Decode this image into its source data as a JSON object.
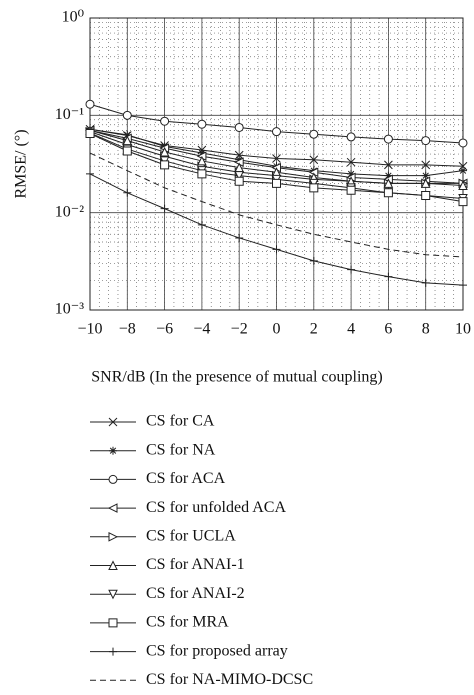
{
  "chart_data": {
    "type": "line",
    "x_label": "SNR/dB (In the presence of mutual coupling)",
    "y_label": "RMSE/ (°)",
    "log_y": true,
    "grid": true,
    "x": [
      -10,
      -8,
      -6,
      -4,
      -2,
      0,
      2,
      4,
      6,
      8,
      10
    ],
    "xlim": [
      -10,
      10
    ],
    "xticks": [
      {
        "value": -10,
        "label": "−10"
      },
      {
        "value": -8,
        "label": "−8"
      },
      {
        "value": -6,
        "label": "−6"
      },
      {
        "value": -4,
        "label": "−4"
      },
      {
        "value": -2,
        "label": "−2"
      },
      0,
      2,
      4,
      6,
      8,
      10
    ],
    "ylim": [
      0.001,
      1
    ],
    "yticks": [
      {
        "value": 0.001,
        "label": "10⁻³"
      },
      {
        "value": 0.01,
        "label": "10⁻²"
      },
      {
        "value": 0.1,
        "label": "10⁻¹"
      },
      {
        "value": 1,
        "label": "10⁰"
      }
    ],
    "series": [
      {
        "name": "CS for CA",
        "color": "#222",
        "marker": "x",
        "values": [
          0.072,
          0.062,
          0.049,
          0.044,
          0.039,
          0.036,
          0.035,
          0.033,
          0.031,
          0.031,
          0.03
        ]
      },
      {
        "name": "CS for NA",
        "color": "#222",
        "marker": "asterisk",
        "values": [
          0.072,
          0.063,
          0.048,
          0.041,
          0.035,
          0.03,
          0.027,
          0.025,
          0.024,
          0.024,
          0.027
        ]
      },
      {
        "name": "CS for ACA",
        "color": "#222",
        "marker": "circle",
        "values": [
          0.13,
          0.1,
          0.087,
          0.081,
          0.075,
          0.068,
          0.064,
          0.06,
          0.057,
          0.055,
          0.052
        ]
      },
      {
        "name": "CS for unfolded ACA",
        "color": "#222",
        "marker": "triangle-left",
        "values": [
          0.07,
          0.058,
          0.046,
          0.038,
          0.033,
          0.029,
          0.026,
          0.023,
          0.022,
          0.021,
          0.02
        ]
      },
      {
        "name": "CS for UCLA",
        "color": "#222",
        "marker": "triangle-right",
        "values": [
          0.068,
          0.05,
          0.038,
          0.03,
          0.026,
          0.024,
          0.022,
          0.021,
          0.02,
          0.02,
          0.02
        ]
      },
      {
        "name": "CS for ANAI-1",
        "color": "#222",
        "marker": "triangle-up",
        "values": [
          0.07,
          0.055,
          0.042,
          0.034,
          0.029,
          0.026,
          0.023,
          0.021,
          0.02,
          0.02,
          0.019
        ]
      },
      {
        "name": "CS for ANAI-2",
        "color": "#222",
        "marker": "triangle-down",
        "values": [
          0.066,
          0.045,
          0.034,
          0.027,
          0.024,
          0.022,
          0.02,
          0.018,
          0.016,
          0.015,
          0.014
        ]
      },
      {
        "name": "CS for MRA",
        "color": "#222",
        "marker": "square",
        "values": [
          0.065,
          0.043,
          0.031,
          0.025,
          0.021,
          0.02,
          0.018,
          0.017,
          0.016,
          0.015,
          0.013
        ]
      },
      {
        "name": "CS for proposed array",
        "color": "#222",
        "marker": "plus",
        "values": [
          0.025,
          0.016,
          0.011,
          0.0075,
          0.0055,
          0.0042,
          0.0032,
          0.0026,
          0.0022,
          0.0019,
          0.0018
        ]
      },
      {
        "name": "CS for NA-MIMO-DCSC",
        "color": "#222",
        "marker": "none",
        "dashed": true,
        "values": [
          0.041,
          0.027,
          0.018,
          0.013,
          0.0095,
          0.0075,
          0.006,
          0.005,
          0.0042,
          0.0037,
          0.0035
        ]
      }
    ]
  }
}
